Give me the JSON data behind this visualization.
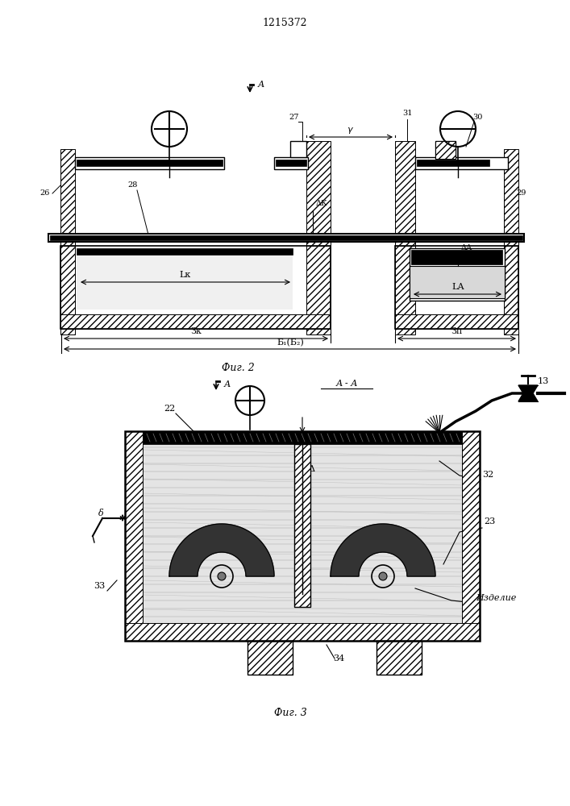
{
  "title": "1215372",
  "fig2_label": "Фиг. 2",
  "fig3_label": "Фиг. 3",
  "bg_color": "#ffffff",
  "line_color": "#000000"
}
